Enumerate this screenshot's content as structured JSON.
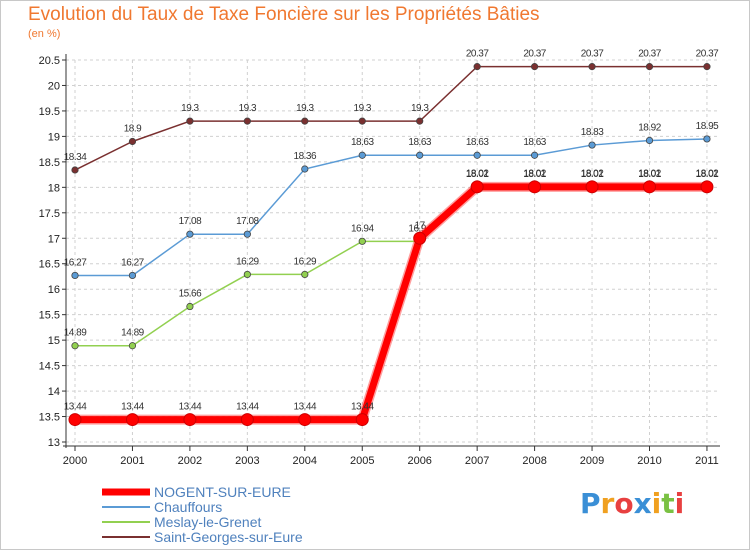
{
  "chart_data": {
    "type": "line",
    "title": "Evolution du Taux de Taxe Foncière sur les Propriétés Bâties",
    "ylabel": "(en %)",
    "xlabel": "",
    "categories": [
      "2000",
      "2001",
      "2002",
      "2003",
      "2004",
      "2005",
      "2006",
      "2007",
      "2008",
      "2009",
      "2010",
      "2011"
    ],
    "ylim": [
      13,
      20.5
    ],
    "yticks": [
      13,
      13.5,
      14,
      14.5,
      15,
      15.5,
      16,
      16.5,
      17,
      17.5,
      18,
      18.5,
      19,
      19.5,
      20,
      20.5
    ],
    "ytick_labels": [
      "13",
      "13.5",
      "14",
      "14.5",
      "15",
      "15.5",
      "16",
      "16.5",
      "17",
      "17.5",
      "18",
      "18.5",
      "19",
      "19.5",
      "20",
      "20.5"
    ],
    "grid": true,
    "series": [
      {
        "name": "Saint-Georges-sur-Eure",
        "color": "#7a3030",
        "values": [
          18.34,
          18.9,
          19.3,
          19.3,
          19.3,
          19.3,
          19.3,
          20.37,
          20.37,
          20.37,
          20.37,
          20.37
        ],
        "labels": [
          "18.34",
          "18.9",
          "19.3",
          "19.3",
          "19.3",
          "19.3",
          "19.3",
          "20.37",
          "20.37",
          "20.37",
          "20.37",
          "20.37"
        ]
      },
      {
        "name": "Chauffours",
        "color": "#5b9bd5",
        "values": [
          16.27,
          16.27,
          17.08,
          17.08,
          18.36,
          18.63,
          18.63,
          18.63,
          18.63,
          18.83,
          18.92,
          18.95
        ],
        "labels": [
          "16.27",
          "16.27",
          "17.08",
          "17.08",
          "18.36",
          "18.63",
          "18.63",
          "18.63",
          "18.63",
          "18.83",
          "18.92",
          "18.95"
        ]
      },
      {
        "name": "Meslay-le-Grenet",
        "color": "#92d050",
        "values": [
          14.89,
          14.89,
          15.66,
          16.29,
          16.29,
          16.94,
          16.94,
          18.02,
          18.02,
          18.02,
          18.02,
          18.02
        ],
        "labels": [
          "14.89",
          "14.89",
          "15.66",
          "16.29",
          "16.29",
          "16.94",
          "16.94",
          "18.02",
          "18.02",
          "18.02",
          "18.02",
          "18.02"
        ]
      },
      {
        "name": "NOGENT-SUR-EURE",
        "color": "#ff0000",
        "values": [
          13.44,
          13.44,
          13.44,
          13.44,
          13.44,
          13.44,
          17,
          18.01,
          18.01,
          18.01,
          18.01,
          18.01
        ],
        "labels": [
          "13.44",
          "13.44",
          "13.44",
          "13.44",
          "13.44",
          "13.44",
          "17",
          "18.01",
          "18.01",
          "18.01",
          "18.01",
          "18.01"
        ]
      }
    ],
    "legend": [
      {
        "name": "NOGENT-SUR-EURE",
        "color": "#ff0000"
      },
      {
        "name": "Chauffours",
        "color": "#5b9bd5"
      },
      {
        "name": "Meslay-le-Grenet",
        "color": "#92d050"
      },
      {
        "name": "Saint-Georges-sur-Eure",
        "color": "#7a3030"
      }
    ]
  },
  "logo": {
    "letters": [
      "P",
      "r",
      "o",
      "x",
      "i",
      "t",
      "i"
    ],
    "colors": [
      "#3a8fd6",
      "#f0a020",
      "#e84040",
      "#3a8fd6",
      "#f0a020",
      "#7ac143",
      "#e84040"
    ]
  }
}
